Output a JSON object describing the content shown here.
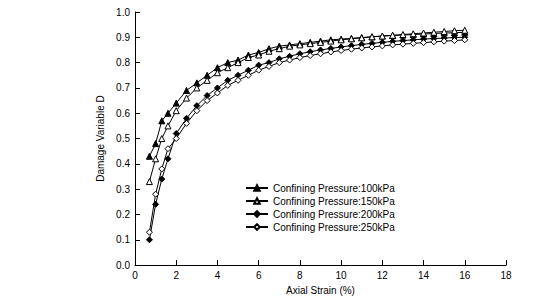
{
  "chart_data": {
    "type": "line",
    "x_label": "Axial Strain (%)",
    "y_label": "Damage Variable D",
    "x": [
      0.7,
      1.0,
      1.3,
      1.6,
      2,
      2.5,
      3,
      3.5,
      4,
      4.5,
      5,
      5.5,
      6,
      6.5,
      7,
      7.5,
      8,
      8.5,
      9,
      9.5,
      10,
      10.5,
      11,
      11.5,
      12,
      12.5,
      13,
      13.5,
      14,
      14.5,
      15,
      15.5,
      16
    ],
    "series": [
      {
        "name": "Confining Pressure:100kPa",
        "color": "#000000",
        "marker": "triangle",
        "line_style": "solid",
        "values": [
          0.43,
          0.48,
          0.57,
          0.6,
          0.64,
          0.69,
          0.72,
          0.75,
          0.78,
          0.8,
          0.81,
          0.83,
          0.84,
          0.855,
          0.865,
          0.87,
          0.875,
          0.88,
          0.885,
          0.89,
          0.893,
          0.896,
          0.899,
          0.902,
          0.905,
          0.907,
          0.909,
          0.911,
          0.913,
          0.915,
          0.917,
          0.918,
          0.92
        ]
      },
      {
        "name": "Confining Pressure:150kPa",
        "color": "#000000",
        "marker": "triangle-open",
        "line_style": "solid",
        "values": [
          0.33,
          0.42,
          0.5,
          0.55,
          0.61,
          0.66,
          0.7,
          0.73,
          0.76,
          0.78,
          0.8,
          0.82,
          0.83,
          0.845,
          0.855,
          0.865,
          0.87,
          0.875,
          0.88,
          0.885,
          0.89,
          0.894,
          0.898,
          0.902,
          0.905,
          0.908,
          0.911,
          0.914,
          0.917,
          0.92,
          0.923,
          0.926,
          0.928
        ]
      },
      {
        "name": "Confining Pressure:200kPa",
        "color": "#000000",
        "marker": "diamond",
        "line_style": "solid",
        "values": [
          0.1,
          0.24,
          0.34,
          0.42,
          0.52,
          0.58,
          0.63,
          0.67,
          0.7,
          0.73,
          0.75,
          0.77,
          0.79,
          0.8,
          0.815,
          0.825,
          0.835,
          0.843,
          0.85,
          0.856,
          0.862,
          0.867,
          0.872,
          0.876,
          0.88,
          0.884,
          0.887,
          0.89,
          0.893,
          0.895,
          0.897,
          0.899,
          0.9
        ]
      },
      {
        "name": "Confining Pressure:250kPa",
        "color": "#000000",
        "marker": "diamond-open",
        "line_style": "solid",
        "values": [
          0.13,
          0.28,
          0.38,
          0.46,
          0.5,
          0.56,
          0.61,
          0.65,
          0.68,
          0.71,
          0.73,
          0.75,
          0.77,
          0.785,
          0.8,
          0.81,
          0.82,
          0.828,
          0.835,
          0.842,
          0.848,
          0.853,
          0.858,
          0.862,
          0.866,
          0.87,
          0.873,
          0.876,
          0.879,
          0.882,
          0.885,
          0.887,
          0.89
        ]
      }
    ],
    "xlim": [
      0,
      18
    ],
    "xticks": [
      0,
      2,
      4,
      6,
      8,
      10,
      12,
      14,
      16,
      18
    ],
    "ylim": [
      0,
      1
    ],
    "yticks": [
      {
        "value": 0,
        "label": "0.0"
      },
      0.1,
      0.2,
      0.3,
      0.4,
      0.5,
      0.6,
      0.7,
      0.8,
      0.9,
      {
        "value": 1,
        "label": "1.0"
      }
    ],
    "grid": false,
    "legend": "lower right"
  }
}
